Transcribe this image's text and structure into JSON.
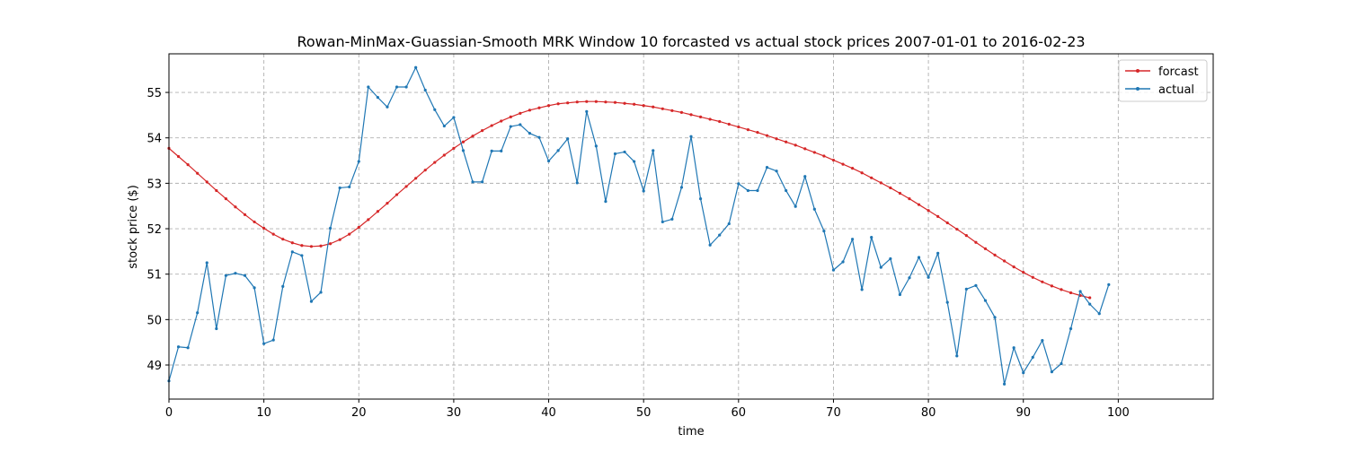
{
  "chart_data": {
    "type": "line",
    "title": "Rowan-MinMax-Guassian-Smooth MRK Window 10 forcasted vs actual stock prices 2007-01-01 to 2016-02-23",
    "xlabel": "time",
    "ylabel": "stock price ($)",
    "xlim": [
      0,
      110
    ],
    "ylim": [
      48.25,
      55.85
    ],
    "x_ticks": [
      0,
      10,
      20,
      30,
      40,
      50,
      60,
      70,
      80,
      90,
      100
    ],
    "y_ticks": [
      49,
      50,
      51,
      52,
      53,
      54,
      55
    ],
    "grid": true,
    "legend_position": "upper right",
    "series": [
      {
        "name": "forcast",
        "color": "#d62728",
        "x_start": 0,
        "values": [
          53.77,
          53.59,
          53.41,
          53.22,
          53.03,
          52.84,
          52.66,
          52.48,
          52.31,
          52.15,
          52.01,
          51.88,
          51.77,
          51.69,
          51.63,
          51.61,
          51.62,
          51.67,
          51.76,
          51.88,
          52.03,
          52.2,
          52.38,
          52.56,
          52.75,
          52.93,
          53.11,
          53.29,
          53.46,
          53.62,
          53.77,
          53.91,
          54.04,
          54.16,
          54.27,
          54.37,
          54.46,
          54.54,
          54.61,
          54.66,
          54.71,
          54.75,
          54.77,
          54.79,
          54.8,
          54.8,
          54.79,
          54.78,
          54.76,
          54.74,
          54.71,
          54.68,
          54.64,
          54.6,
          54.56,
          54.51,
          54.46,
          54.41,
          54.36,
          54.3,
          54.24,
          54.18,
          54.12,
          54.05,
          53.98,
          53.91,
          53.84,
          53.76,
          53.68,
          53.6,
          53.51,
          53.42,
          53.33,
          53.23,
          53.12,
          53.01,
          52.9,
          52.78,
          52.66,
          52.53,
          52.4,
          52.27,
          52.13,
          51.99,
          51.85,
          51.7,
          51.56,
          51.42,
          51.29,
          51.16,
          51.04,
          50.93,
          50.83,
          50.74,
          50.66,
          50.59,
          50.53,
          50.48
        ]
      },
      {
        "name": "actual",
        "color": "#1f77b4",
        "x_start": 0,
        "values": [
          48.65,
          49.4,
          49.38,
          50.15,
          51.25,
          49.8,
          50.97,
          51.02,
          50.97,
          50.7,
          49.47,
          49.55,
          50.73,
          51.49,
          51.41,
          50.4,
          50.6,
          52.01,
          52.9,
          52.92,
          53.48,
          55.12,
          54.89,
          54.68,
          55.12,
          55.12,
          55.55,
          55.05,
          54.62,
          54.26,
          54.45,
          53.72,
          53.03,
          53.03,
          53.71,
          53.71,
          54.25,
          54.29,
          54.1,
          54.01,
          53.49,
          53.72,
          53.98,
          53.01,
          54.58,
          53.82,
          52.6,
          53.65,
          53.69,
          53.48,
          52.83,
          53.72,
          52.15,
          52.21,
          52.91,
          54.03,
          52.66,
          51.64,
          51.86,
          52.11,
          52.99,
          52.84,
          52.84,
          53.35,
          53.27,
          52.84,
          52.49,
          53.15,
          52.43,
          51.95,
          51.09,
          51.27,
          51.77,
          50.66,
          51.81,
          51.15,
          51.34,
          50.55,
          50.92,
          51.37,
          50.93,
          51.46,
          50.38,
          49.2,
          50.67,
          50.75,
          50.42,
          50.05,
          48.58,
          49.38,
          48.83,
          49.17,
          49.54,
          48.85,
          49.03,
          49.8,
          50.62,
          50.34,
          50.13,
          50.77
        ]
      }
    ]
  }
}
